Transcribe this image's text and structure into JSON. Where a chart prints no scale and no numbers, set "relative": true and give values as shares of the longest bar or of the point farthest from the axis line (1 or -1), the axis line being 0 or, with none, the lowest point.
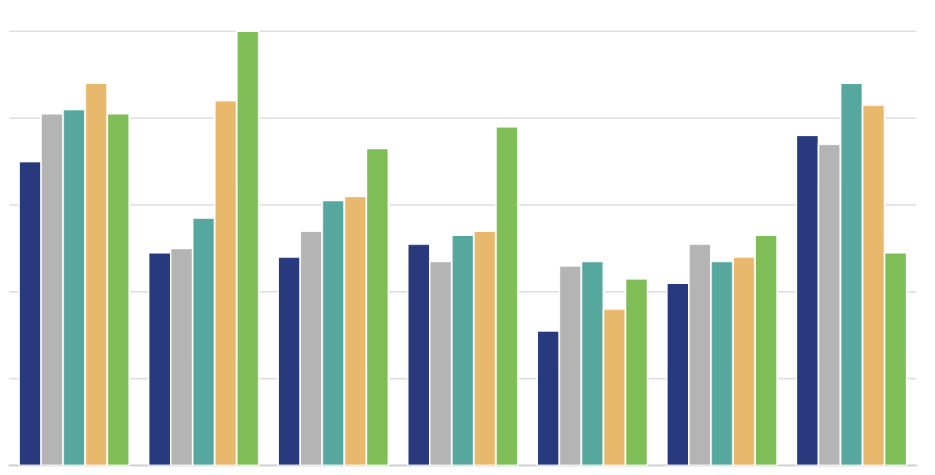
{
  "chart_data": {
    "type": "bar",
    "relative": true,
    "grid": "y",
    "legend": false,
    "categories": [
      null,
      null,
      null,
      null,
      null,
      null,
      null
    ],
    "series": [
      {
        "color": "#283a7d",
        "values": [
          0.7,
          0.49,
          0.48,
          0.51,
          0.31,
          0.42,
          0.76
        ]
      },
      {
        "color": "#b4b4b4",
        "values": [
          0.81,
          0.5,
          0.54,
          0.47,
          0.46,
          0.51,
          0.74
        ]
      },
      {
        "color": "#56a89e",
        "values": [
          0.82,
          0.57,
          0.61,
          0.53,
          0.47,
          0.47,
          0.88
        ]
      },
      {
        "color": "#e8b86c",
        "values": [
          0.88,
          0.84,
          0.62,
          0.54,
          0.36,
          0.48,
          0.83
        ]
      },
      {
        "color": "#7fbd57",
        "values": [
          0.81,
          1.0,
          0.73,
          0.78,
          0.43,
          0.53,
          0.49
        ]
      }
    ]
  }
}
